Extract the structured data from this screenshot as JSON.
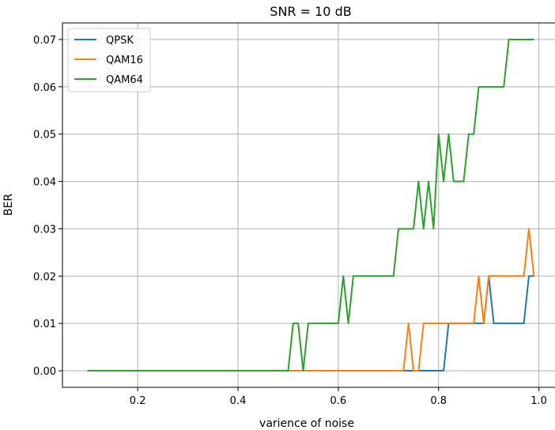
{
  "chart_data": {
    "type": "line",
    "title": "SNR = 10 dB",
    "xlabel": "varience of noise",
    "ylabel": "BER",
    "xlim": [
      0.05,
      1.04
    ],
    "ylim": [
      -0.0035,
      0.0735
    ],
    "xticks": [
      0.2,
      0.4,
      0.6,
      0.8,
      1.0
    ],
    "xtick_labels": [
      "0.2",
      "0.4",
      "0.6",
      "0.8",
      "1.0"
    ],
    "yticks": [
      0.0,
      0.01,
      0.02,
      0.03,
      0.04,
      0.05,
      0.06,
      0.07
    ],
    "ytick_labels": [
      "0.00",
      "0.01",
      "0.02",
      "0.03",
      "0.04",
      "0.05",
      "0.06",
      "0.07"
    ],
    "grid": true,
    "legend_position": "top-left",
    "series": [
      {
        "name": "QPSK",
        "color": "#1f77b4",
        "x": [
          0.1,
          0.8,
          0.81,
          0.82,
          0.88,
          0.89,
          0.9,
          0.91,
          0.96,
          0.97,
          0.98,
          0.99
        ],
        "y": [
          0.0,
          0.0,
          0.0,
          0.01,
          0.01,
          0.01,
          0.02,
          0.01,
          0.01,
          0.01,
          0.02,
          0.02
        ]
      },
      {
        "name": "QAM16",
        "color": "#ff7f0e",
        "x": [
          0.1,
          0.73,
          0.74,
          0.75,
          0.76,
          0.77,
          0.87,
          0.88,
          0.89,
          0.9,
          0.97,
          0.98,
          0.99
        ],
        "y": [
          0.0,
          0.0,
          0.01,
          0.0,
          0.0,
          0.01,
          0.01,
          0.02,
          0.01,
          0.02,
          0.02,
          0.03,
          0.02
        ]
      },
      {
        "name": "QAM64",
        "color": "#2ca02c",
        "x": [
          0.1,
          0.5,
          0.51,
          0.52,
          0.53,
          0.54,
          0.6,
          0.61,
          0.62,
          0.63,
          0.71,
          0.72,
          0.75,
          0.76,
          0.77,
          0.78,
          0.79,
          0.8,
          0.81,
          0.82,
          0.83,
          0.85,
          0.86,
          0.87,
          0.88,
          0.93,
          0.94,
          0.99
        ],
        "y": [
          0.0,
          0.0,
          0.01,
          0.01,
          0.0,
          0.01,
          0.01,
          0.02,
          0.01,
          0.02,
          0.02,
          0.03,
          0.03,
          0.04,
          0.03,
          0.04,
          0.03,
          0.05,
          0.04,
          0.05,
          0.04,
          0.04,
          0.05,
          0.05,
          0.06,
          0.06,
          0.07,
          0.07
        ]
      }
    ]
  }
}
